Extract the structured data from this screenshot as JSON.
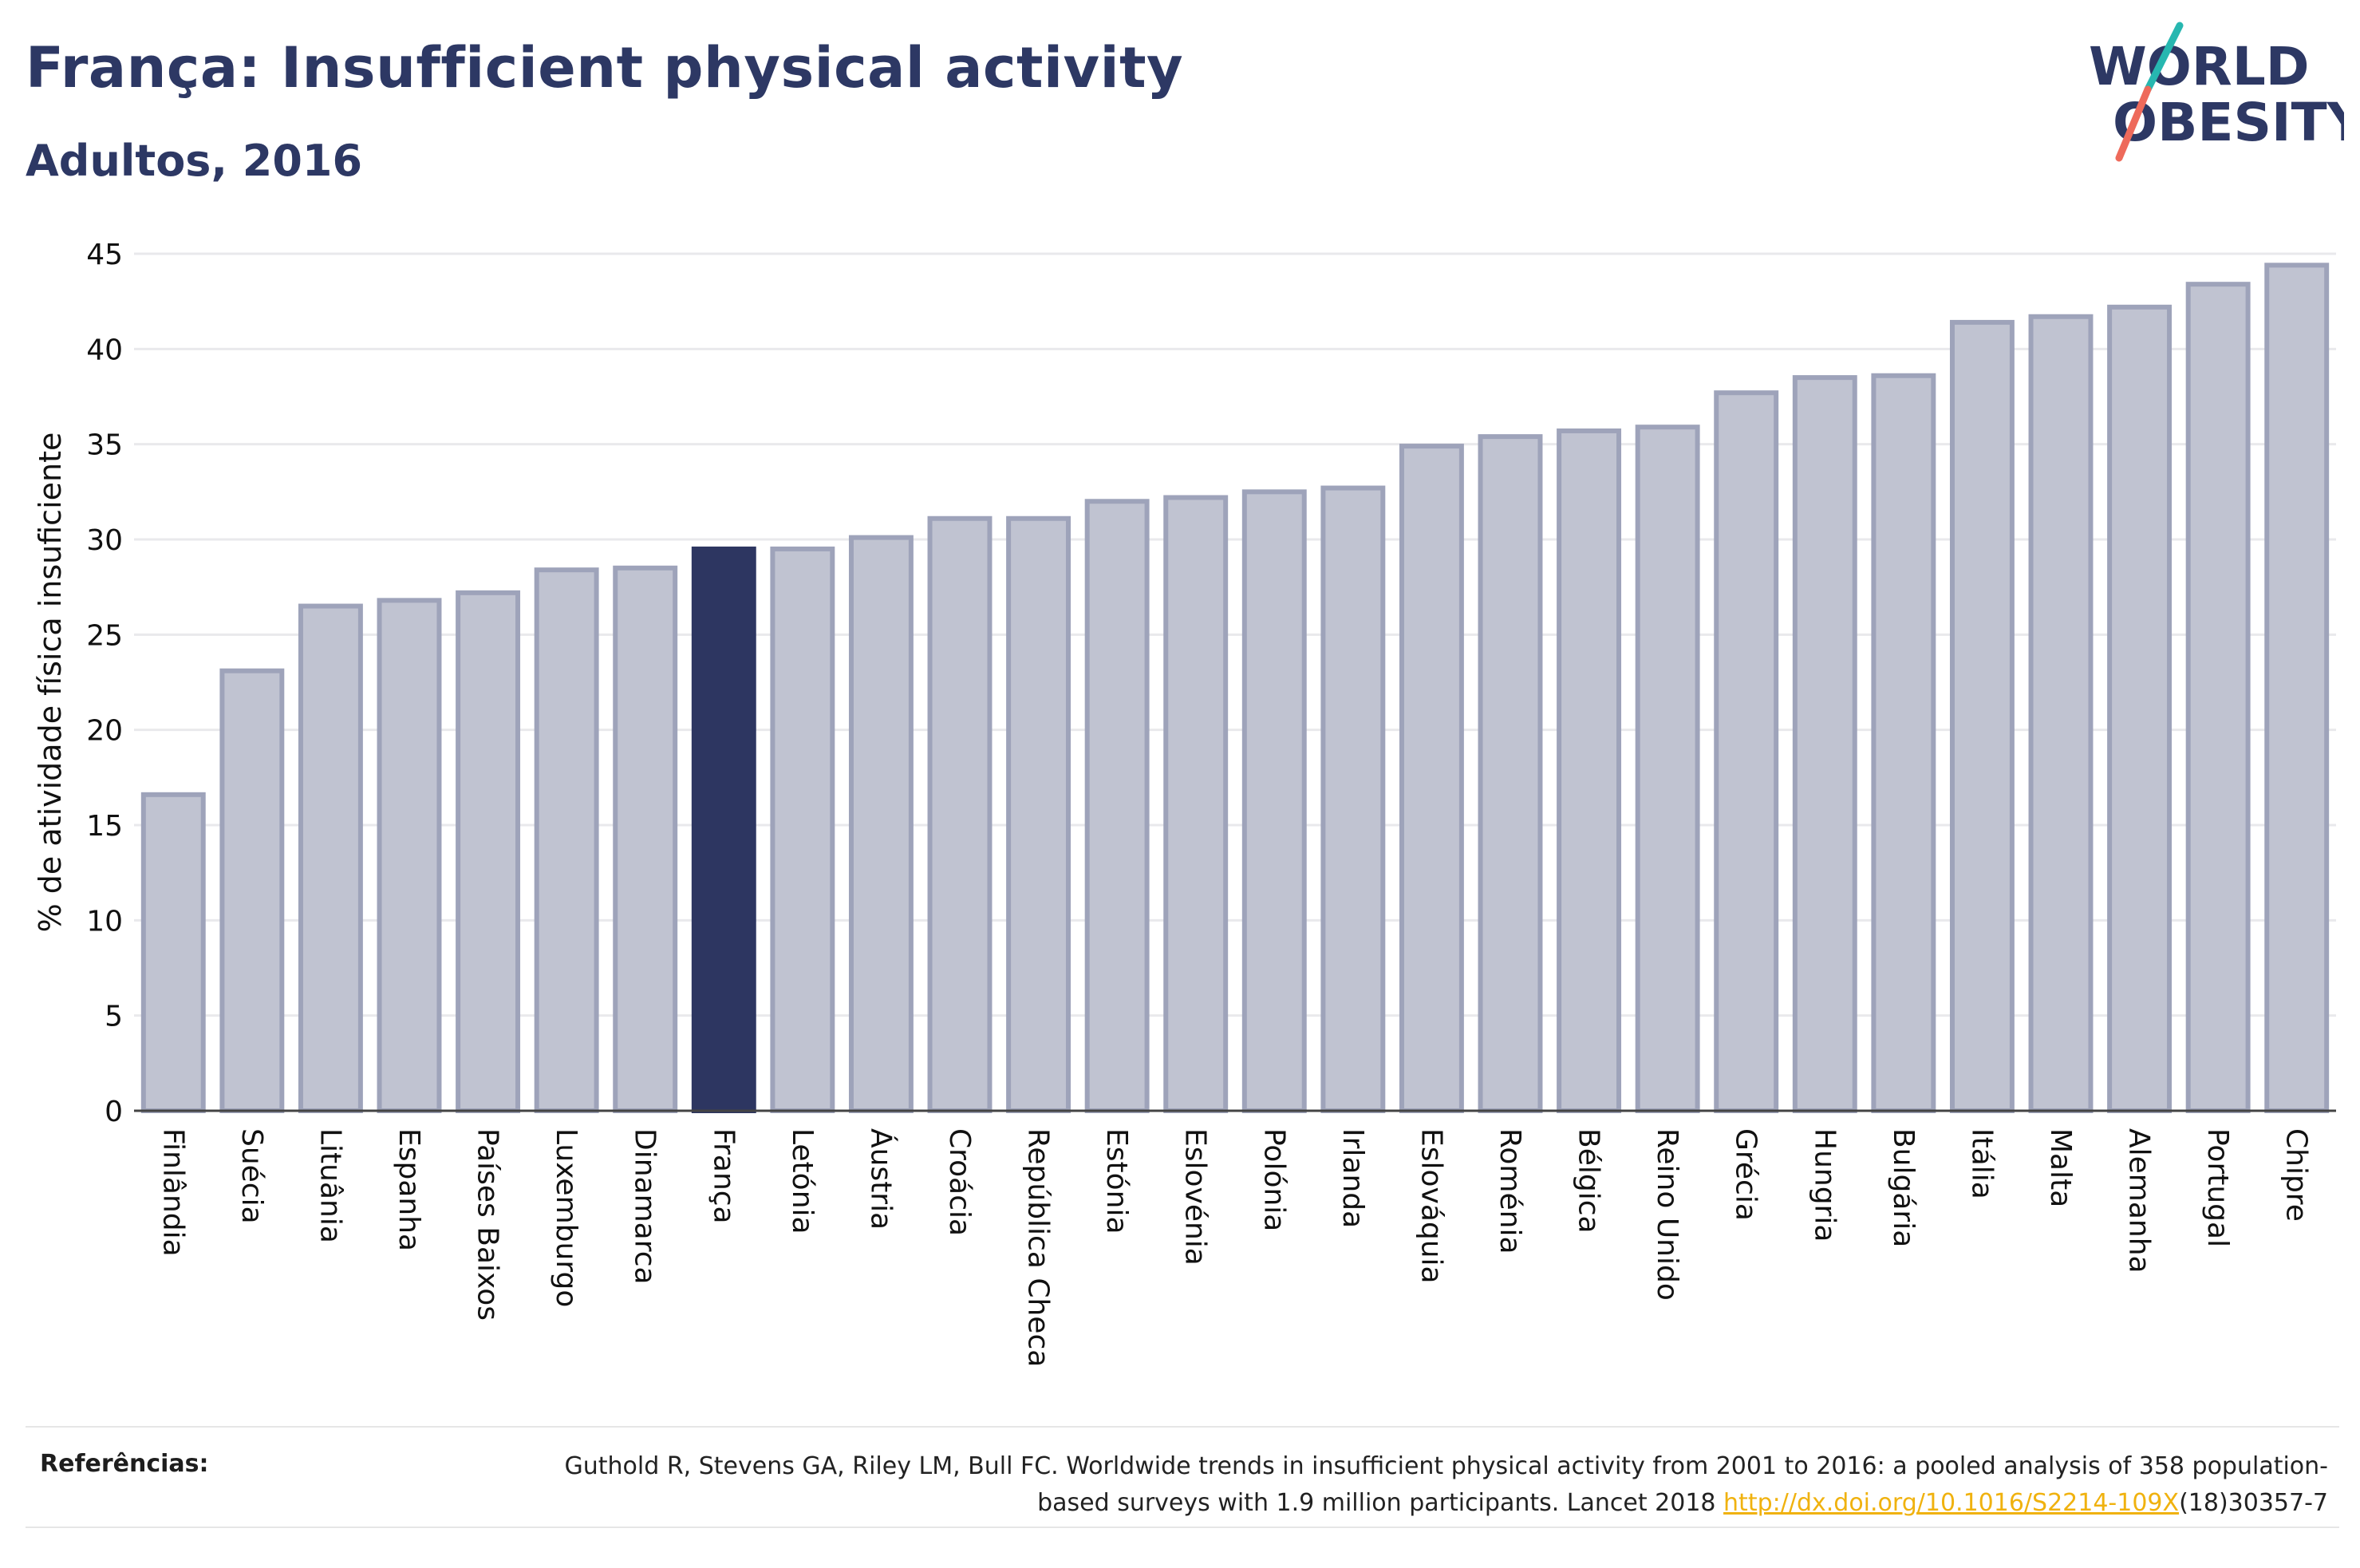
{
  "header": {
    "title": "França: Insufficient physical activity",
    "subtitle": "Adultos, 2016"
  },
  "logo": {
    "line1": "WORLD",
    "line2": "OBESITY",
    "colors": {
      "text": "#2d3864",
      "teal": "#27b7b0",
      "coral": "#ee6a5b"
    }
  },
  "colors": {
    "bar": "#c0c3d1",
    "bar_border": "#9ea3ba",
    "highlight": "#2d3661",
    "axis_text": "#111111",
    "grid": "#e9e9ec"
  },
  "chart_data": {
    "type": "bar",
    "ylabel": "% de atividade física insuficiente",
    "ylim": [
      0,
      45
    ],
    "yticks": [
      0,
      5,
      10,
      15,
      20,
      25,
      30,
      35,
      40,
      45
    ],
    "grid": true,
    "highlight": "França",
    "categories": [
      "Finlândia",
      "Suécia",
      "Lituânia",
      "Espanha",
      "Países Baixos",
      "Luxemburgo",
      "Dinamarca",
      "França",
      "Letónia",
      "Áustria",
      "Croácia",
      "República Checa",
      "Estónia",
      "Eslovénia",
      "Polónia",
      "Irlanda",
      "Eslováquia",
      "Roménia",
      "Bélgica",
      "Reino Unido",
      "Grécia",
      "Hungria",
      "Bulgária",
      "Itália",
      "Malta",
      "Alemanha",
      "Portugal",
      "Chipre"
    ],
    "values": [
      16.6,
      23.1,
      26.5,
      26.8,
      27.2,
      28.4,
      28.5,
      29.5,
      29.5,
      30.1,
      31.1,
      31.1,
      32.0,
      32.2,
      32.5,
      32.7,
      34.9,
      35.4,
      35.7,
      35.9,
      37.7,
      38.5,
      38.6,
      41.4,
      41.7,
      42.2,
      43.4,
      44.4
    ]
  },
  "references": {
    "label": "Referências:",
    "text_before": "Guthold R, Stevens GA, Riley LM, Bull FC. Worldwide trends in insufficient physical activity from 2001 to 2016: a pooled analysis of 358 population-based surveys with 1.9 million participants. Lancet 2018 ",
    "link_text": "http://dx.doi.org/10.1016/S2214-109X",
    "text_after": "(18)30357-7"
  }
}
